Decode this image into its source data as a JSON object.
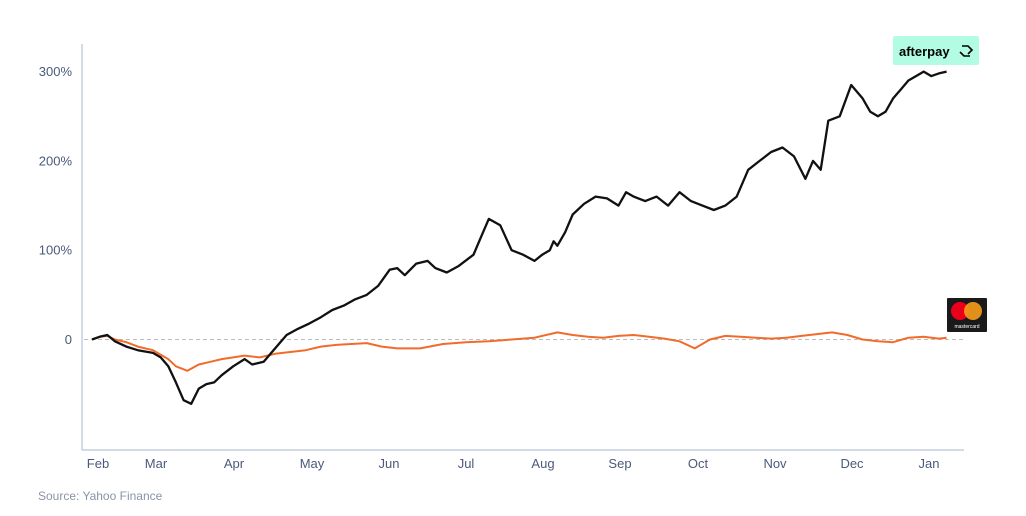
{
  "source_text": "Source: Yahoo Finance",
  "logos": {
    "afterpay": {
      "text": "afterpay",
      "bg": "#b2fce4",
      "fg": "#000000"
    },
    "mastercard": {
      "text": "mastercard",
      "bg": "#1a1a1a",
      "red": "#eb001b",
      "orange": "#f79e1b"
    }
  },
  "colors": {
    "axis": "#a9b7d0",
    "zero_line": "#bdbdbd",
    "tick_text": "#4a5a7a"
  },
  "chart_data": {
    "type": "line",
    "title": "",
    "xlabel": "",
    "ylabel": "",
    "x_ticks": [
      "Feb",
      "Mar",
      "Apr",
      "May",
      "Jun",
      "Jul",
      "Aug",
      "Sep",
      "Oct",
      "Nov",
      "Dec",
      "Jan"
    ],
    "y_ticks": [
      {
        "value": 300,
        "label": "300%"
      },
      {
        "value": 200,
        "label": "200%"
      },
      {
        "value": 100,
        "label": "100%"
      },
      {
        "value": 0,
        "label": "0"
      }
    ],
    "xlim": [
      0,
      11.5
    ],
    "ylim": [
      -120,
      330
    ],
    "zero_line": "dashed",
    "grid": false,
    "series": [
      {
        "name": "",
        "color": "#111111",
        "x": [
          0,
          0.1,
          0.2,
          0.3,
          0.45,
          0.6,
          0.8,
          0.9,
          1.0,
          1.1,
          1.2,
          1.3,
          1.4,
          1.5,
          1.6,
          1.7,
          1.85,
          2.0,
          2.1,
          2.25,
          2.4,
          2.55,
          2.7,
          2.85,
          3.0,
          3.15,
          3.3,
          3.45,
          3.6,
          3.75,
          3.9,
          4.0,
          4.1,
          4.25,
          4.4,
          4.5,
          4.65,
          4.8,
          5.0,
          5.1,
          5.2,
          5.35,
          5.5,
          5.65,
          5.8,
          5.9,
          6.0,
          6.05,
          6.1,
          6.2,
          6.3,
          6.45,
          6.6,
          6.75,
          6.9,
          7.0,
          7.1,
          7.25,
          7.4,
          7.55,
          7.7,
          7.85,
          8.0,
          8.15,
          8.3,
          8.45,
          8.6,
          8.75,
          8.9,
          9.05,
          9.2,
          9.35,
          9.45,
          9.55,
          9.65,
          9.8,
          9.95,
          10.1,
          10.2,
          10.3,
          10.4,
          10.5,
          10.6,
          10.7,
          10.8,
          10.9,
          11.0,
          11.1,
          11.2
        ],
        "y": [
          0,
          3,
          5,
          -2,
          -8,
          -12,
          -15,
          -20,
          -30,
          -48,
          -68,
          -72,
          -55,
          -50,
          -48,
          -40,
          -30,
          -22,
          -28,
          -25,
          -10,
          5,
          12,
          18,
          25,
          33,
          38,
          45,
          50,
          60,
          78,
          80,
          72,
          85,
          88,
          80,
          75,
          82,
          95,
          115,
          135,
          128,
          100,
          95,
          88,
          95,
          100,
          110,
          105,
          120,
          140,
          152,
          160,
          158,
          150,
          165,
          160,
          155,
          160,
          150,
          165,
          155,
          150,
          145,
          150,
          160,
          190,
          200,
          210,
          215,
          205,
          180,
          200,
          190,
          245,
          250,
          285,
          270,
          255,
          250,
          255,
          270,
          280,
          290,
          295,
          300,
          295,
          298,
          300
        ]
      },
      {
        "name": "",
        "color": "#f26b2a",
        "x": [
          0,
          0.1,
          0.2,
          0.3,
          0.45,
          0.6,
          0.8,
          1.0,
          1.1,
          1.25,
          1.4,
          1.55,
          1.7,
          1.85,
          2.0,
          2.2,
          2.4,
          2.6,
          2.8,
          3.0,
          3.2,
          3.4,
          3.6,
          3.8,
          4.0,
          4.3,
          4.6,
          4.9,
          5.2,
          5.5,
          5.8,
          6.1,
          6.3,
          6.5,
          6.7,
          6.9,
          7.1,
          7.3,
          7.5,
          7.7,
          7.9,
          8.1,
          8.3,
          8.5,
          8.7,
          8.9,
          9.1,
          9.3,
          9.5,
          9.7,
          9.9,
          10.1,
          10.3,
          10.5,
          10.7,
          10.9,
          11.1,
          11.2
        ],
        "y": [
          0,
          3,
          4,
          0,
          -3,
          -8,
          -12,
          -22,
          -30,
          -35,
          -28,
          -25,
          -22,
          -20,
          -18,
          -20,
          -16,
          -14,
          -12,
          -8,
          -6,
          -5,
          -4,
          -8,
          -10,
          -10,
          -5,
          -3,
          -2,
          0,
          2,
          8,
          5,
          3,
          2,
          4,
          5,
          3,
          1,
          -2,
          -10,
          0,
          4,
          3,
          2,
          1,
          2,
          4,
          6,
          8,
          5,
          0,
          -2,
          -3,
          2,
          3,
          1,
          2
        ]
      }
    ]
  }
}
